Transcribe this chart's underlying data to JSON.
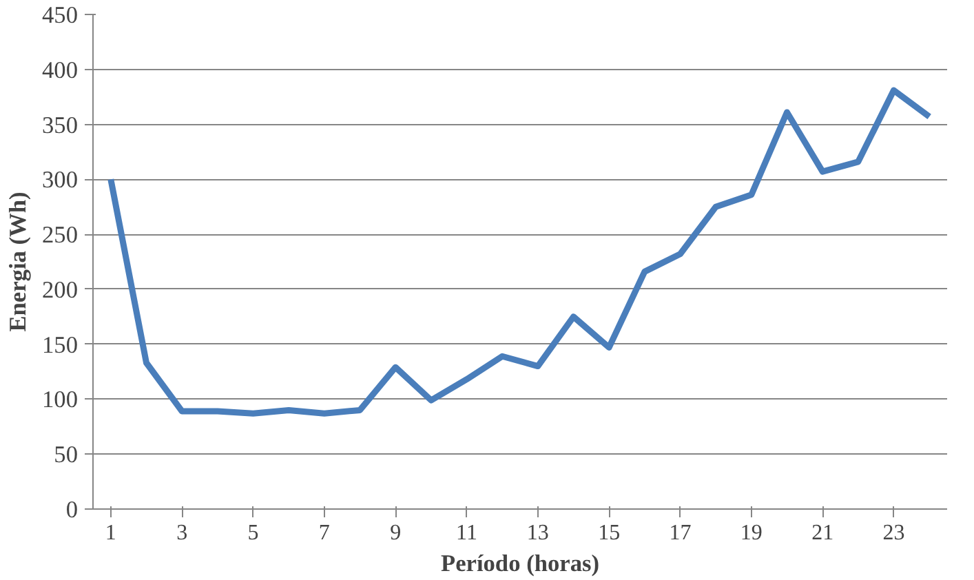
{
  "chart_data": {
    "type": "line",
    "xlabel": "Período (horas)",
    "ylabel": "Energia (Wh)",
    "x": [
      1,
      2,
      3,
      4,
      5,
      6,
      7,
      8,
      9,
      10,
      11,
      12,
      13,
      14,
      15,
      16,
      17,
      18,
      19,
      20,
      21,
      22,
      23,
      24
    ],
    "series": [
      {
        "color": "#4a7ebb",
        "values": [
          300,
          133,
          89,
          89,
          87,
          90,
          87,
          90,
          129,
          99,
          118,
          139,
          130,
          175,
          147,
          216,
          232,
          275,
          286,
          361,
          307,
          316,
          381,
          357
        ]
      }
    ],
    "xlim": [
      0.5,
      24.5
    ],
    "xticks": [
      1,
      3,
      5,
      7,
      9,
      11,
      13,
      15,
      17,
      19,
      21,
      23
    ],
    "ylim": [
      0,
      450
    ],
    "yticks": [
      0,
      50,
      100,
      150,
      200,
      250,
      300,
      350,
      400,
      450
    ],
    "grid": "y",
    "line_style": "solid"
  }
}
